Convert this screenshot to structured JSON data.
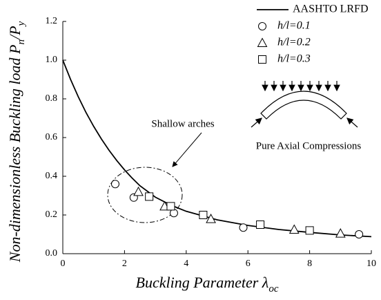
{
  "chart_data": {
    "type": "scatter",
    "x_label": [
      "Buckling Parameter λ",
      "oc"
    ],
    "y_label": [
      "Non-dimensionless Buckling load P",
      "n",
      "/P",
      "y"
    ],
    "xlim": [
      0,
      10
    ],
    "ylim": [
      0,
      1.2
    ],
    "xticks": [
      0,
      2,
      4,
      6,
      8,
      10
    ],
    "yticks": [
      {
        "value": 0,
        "label": "0.0"
      },
      {
        "value": 0.2,
        "label": "0.2"
      },
      {
        "value": 0.4,
        "label": "0.4"
      },
      {
        "value": 0.6,
        "label": "0.6"
      },
      {
        "value": 0.8,
        "label": "0.8"
      },
      {
        "value": 1.0,
        "label": "1.0"
      },
      {
        "value": 1.2,
        "label": "1.2"
      }
    ],
    "legend": "upper right",
    "series": [
      {
        "name": "AASHTO LRFD",
        "type": "line",
        "color": "#000000",
        "x": [
          0,
          0.25,
          0.5,
          0.75,
          1,
          1.25,
          1.5,
          1.75,
          2,
          2.25,
          2.5,
          3,
          3.5,
          4,
          5,
          6,
          7,
          8,
          9,
          10
        ],
        "values": [
          1.0,
          0.901,
          0.811,
          0.73,
          0.658,
          0.593,
          0.534,
          0.481,
          0.433,
          0.39,
          0.351,
          0.292,
          0.251,
          0.219,
          0.175,
          0.146,
          0.125,
          0.11,
          0.097,
          0.088
        ]
      },
      {
        "name": "h/l=0.1",
        "type": "scatter",
        "marker": "circle",
        "color": "#000000",
        "x": [
          1.7,
          2.3,
          3.6,
          5.85,
          9.6
        ],
        "values": [
          0.36,
          0.29,
          0.21,
          0.135,
          0.1
        ]
      },
      {
        "name": "h/l=0.2",
        "type": "scatter",
        "marker": "triangle",
        "color": "#000000",
        "x": [
          2.45,
          3.3,
          4.8,
          7.5,
          9.0
        ],
        "values": [
          0.32,
          0.245,
          0.18,
          0.125,
          0.105
        ]
      },
      {
        "name": "h/l=0.3",
        "type": "scatter",
        "marker": "square",
        "color": "#000000",
        "x": [
          2.8,
          3.5,
          4.55,
          6.4,
          8.0
        ],
        "values": [
          0.295,
          0.245,
          0.2,
          0.15,
          0.12
        ]
      }
    ],
    "annotations": [
      "Shallow arches",
      "Pure Axial Compressions"
    ]
  }
}
